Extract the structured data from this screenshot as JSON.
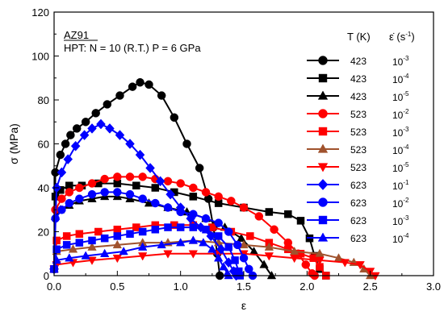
{
  "chart_data": {
    "type": "scatter",
    "annotation": {
      "material": "AZ91",
      "condition": "HPT: N = 10 (R.T.) P = 6 GPa"
    },
    "xlabel": "ε",
    "ylabel": "σ (MPa)",
    "xlim": [
      0,
      3.0
    ],
    "ylim": [
      0,
      120
    ],
    "xticks": [
      "0.0",
      "0.5",
      "1.0",
      "1.5",
      "2.0",
      "2.5",
      "3.0"
    ],
    "yticks": [
      "0",
      "20",
      "40",
      "60",
      "80",
      "100",
      "120"
    ],
    "legend": {
      "placement": "right",
      "header_T": "T (K)",
      "header_rate": "ε̇ (s",
      "header_rate_sup": "-1",
      "header_rate_close": ")"
    },
    "series": [
      {
        "T": "423",
        "rate_base": "10",
        "rate_exp": "-3",
        "color": "#000000",
        "marker": "circle",
        "points": [
          [
            0,
            3
          ],
          [
            0.01,
            47
          ],
          [
            0.05,
            55
          ],
          [
            0.09,
            60
          ],
          [
            0.13,
            64
          ],
          [
            0.18,
            67
          ],
          [
            0.25,
            70
          ],
          [
            0.33,
            74
          ],
          [
            0.42,
            78
          ],
          [
            0.52,
            82
          ],
          [
            0.62,
            86
          ],
          [
            0.68,
            88
          ],
          [
            0.75,
            87
          ],
          [
            0.85,
            82
          ],
          [
            0.95,
            72
          ],
          [
            1.05,
            60
          ],
          [
            1.15,
            49
          ],
          [
            1.22,
            35
          ],
          [
            1.26,
            22
          ],
          [
            1.29,
            10
          ],
          [
            1.31,
            0
          ]
        ]
      },
      {
        "T": "423",
        "rate_base": "10",
        "rate_exp": "-4",
        "color": "#000000",
        "marker": "square",
        "points": [
          [
            0,
            3
          ],
          [
            0.01,
            36
          ],
          [
            0.05,
            39
          ],
          [
            0.12,
            41
          ],
          [
            0.22,
            41
          ],
          [
            0.35,
            42
          ],
          [
            0.5,
            42
          ],
          [
            0.65,
            41
          ],
          [
            0.8,
            40
          ],
          [
            0.95,
            38
          ],
          [
            1.1,
            36
          ],
          [
            1.3,
            33
          ],
          [
            1.5,
            31
          ],
          [
            1.7,
            29
          ],
          [
            1.85,
            28
          ],
          [
            1.95,
            25
          ],
          [
            2.02,
            17
          ],
          [
            2.06,
            9
          ],
          [
            2.1,
            3
          ],
          [
            2.15,
            0
          ]
        ]
      },
      {
        "T": "423",
        "rate_base": "10",
        "rate_exp": "-5",
        "color": "#000000",
        "marker": "triangle-up",
        "points": [
          [
            0,
            3
          ],
          [
            0.01,
            27
          ],
          [
            0.05,
            30
          ],
          [
            0.12,
            32
          ],
          [
            0.2,
            34
          ],
          [
            0.3,
            35
          ],
          [
            0.4,
            36
          ],
          [
            0.5,
            36
          ],
          [
            0.6,
            35
          ],
          [
            0.75,
            33
          ],
          [
            0.9,
            31
          ],
          [
            1.05,
            29
          ],
          [
            1.2,
            26
          ],
          [
            1.35,
            22
          ],
          [
            1.48,
            17
          ],
          [
            1.58,
            11
          ],
          [
            1.66,
            5
          ],
          [
            1.72,
            0
          ]
        ]
      },
      {
        "T": "523",
        "rate_base": "10",
        "rate_exp": "-2",
        "color": "#ff0000",
        "marker": "circle",
        "points": [
          [
            0,
            3
          ],
          [
            0.01,
            30
          ],
          [
            0.06,
            35
          ],
          [
            0.12,
            38
          ],
          [
            0.2,
            40
          ],
          [
            0.3,
            42
          ],
          [
            0.4,
            44
          ],
          [
            0.5,
            45
          ],
          [
            0.6,
            45
          ],
          [
            0.7,
            45
          ],
          [
            0.8,
            44
          ],
          [
            0.9,
            43
          ],
          [
            1.0,
            42
          ],
          [
            1.1,
            40
          ],
          [
            1.2,
            38
          ],
          [
            1.3,
            36
          ],
          [
            1.4,
            34
          ],
          [
            1.5,
            31
          ],
          [
            1.62,
            27
          ],
          [
            1.74,
            21
          ],
          [
            1.85,
            15
          ],
          [
            1.93,
            10
          ],
          [
            1.99,
            5
          ],
          [
            2.04,
            1
          ],
          [
            2.06,
            0
          ]
        ]
      },
      {
        "T": "523",
        "rate_base": "10",
        "rate_exp": "-3",
        "color": "#ff0000",
        "marker": "square",
        "points": [
          [
            0,
            3
          ],
          [
            0.02,
            16
          ],
          [
            0.1,
            18
          ],
          [
            0.2,
            19
          ],
          [
            0.35,
            20
          ],
          [
            0.5,
            21
          ],
          [
            0.65,
            22
          ],
          [
            0.8,
            23
          ],
          [
            0.95,
            23
          ],
          [
            1.1,
            23
          ],
          [
            1.25,
            22
          ],
          [
            1.4,
            20
          ],
          [
            1.55,
            18
          ],
          [
            1.7,
            15
          ],
          [
            1.85,
            12
          ],
          [
            1.95,
            10
          ],
          [
            2.05,
            8
          ],
          [
            2.1,
            4
          ],
          [
            2.15,
            0
          ]
        ]
      },
      {
        "T": "523",
        "rate_base": "10",
        "rate_exp": "-4",
        "color": "#a0522d",
        "marker": "triangle-up",
        "points": [
          [
            0,
            3
          ],
          [
            0.02,
            11
          ],
          [
            0.15,
            12
          ],
          [
            0.3,
            13
          ],
          [
            0.5,
            14
          ],
          [
            0.7,
            15
          ],
          [
            0.9,
            15
          ],
          [
            1.1,
            16
          ],
          [
            1.3,
            15
          ],
          [
            1.5,
            14
          ],
          [
            1.7,
            13
          ],
          [
            1.9,
            11
          ],
          [
            2.1,
            10
          ],
          [
            2.25,
            8
          ],
          [
            2.37,
            6
          ],
          [
            2.45,
            3
          ],
          [
            2.5,
            0
          ]
        ]
      },
      {
        "T": "523",
        "rate_base": "10",
        "rate_exp": "-5",
        "color": "#ff0000",
        "marker": "triangle-down",
        "points": [
          [
            0,
            3
          ],
          [
            0.02,
            5
          ],
          [
            0.15,
            6
          ],
          [
            0.3,
            7
          ],
          [
            0.5,
            8
          ],
          [
            0.7,
            9
          ],
          [
            0.9,
            10
          ],
          [
            1.1,
            10
          ],
          [
            1.3,
            10
          ],
          [
            1.5,
            10
          ],
          [
            1.7,
            9
          ],
          [
            1.9,
            8
          ],
          [
            2.1,
            7
          ],
          [
            2.3,
            6
          ],
          [
            2.42,
            5
          ],
          [
            2.5,
            2
          ],
          [
            2.54,
            0
          ]
        ]
      },
      {
        "T": "623",
        "rate_base": "10",
        "rate_exp": "-1",
        "color": "#0000ff",
        "marker": "diamond",
        "points": [
          [
            0,
            3
          ],
          [
            0.02,
            40
          ],
          [
            0.06,
            47
          ],
          [
            0.11,
            53
          ],
          [
            0.17,
            59
          ],
          [
            0.24,
            64
          ],
          [
            0.3,
            67
          ],
          [
            0.37,
            69
          ],
          [
            0.44,
            67
          ],
          [
            0.52,
            64
          ],
          [
            0.6,
            60
          ],
          [
            0.68,
            55
          ],
          [
            0.76,
            49
          ],
          [
            0.84,
            43
          ],
          [
            0.92,
            37
          ],
          [
            1.0,
            31
          ],
          [
            1.08,
            26
          ],
          [
            1.16,
            22
          ],
          [
            1.24,
            18
          ],
          [
            1.32,
            12
          ],
          [
            1.38,
            6
          ],
          [
            1.42,
            2
          ],
          [
            1.44,
            0
          ]
        ]
      },
      {
        "T": "623",
        "rate_base": "10",
        "rate_exp": "-2",
        "color": "#0000ff",
        "marker": "circle",
        "points": [
          [
            0,
            3
          ],
          [
            0.01,
            26
          ],
          [
            0.06,
            30
          ],
          [
            0.12,
            33
          ],
          [
            0.2,
            35
          ],
          [
            0.3,
            37
          ],
          [
            0.4,
            38
          ],
          [
            0.5,
            38
          ],
          [
            0.6,
            37
          ],
          [
            0.7,
            35
          ],
          [
            0.8,
            33
          ],
          [
            0.9,
            31
          ],
          [
            1.0,
            29
          ],
          [
            1.1,
            28
          ],
          [
            1.2,
            26
          ],
          [
            1.3,
            24
          ],
          [
            1.38,
            20
          ],
          [
            1.45,
            14
          ],
          [
            1.5,
            8
          ],
          [
            1.54,
            3
          ],
          [
            1.57,
            0
          ]
        ]
      },
      {
        "T": "623",
        "rate_base": "10",
        "rate_exp": "-3",
        "color": "#0000ff",
        "marker": "square",
        "points": [
          [
            0,
            3
          ],
          [
            0.02,
            12
          ],
          [
            0.1,
            14
          ],
          [
            0.2,
            15
          ],
          [
            0.3,
            16
          ],
          [
            0.4,
            17
          ],
          [
            0.5,
            18
          ],
          [
            0.6,
            19
          ],
          [
            0.7,
            20
          ],
          [
            0.8,
            21
          ],
          [
            0.9,
            22
          ],
          [
            1.0,
            22
          ],
          [
            1.1,
            22
          ],
          [
            1.2,
            21
          ],
          [
            1.3,
            18
          ],
          [
            1.38,
            13
          ],
          [
            1.43,
            7
          ],
          [
            1.46,
            2
          ],
          [
            1.47,
            0
          ]
        ]
      },
      {
        "T": "623",
        "rate_base": "10",
        "rate_exp": "-4",
        "color": "#0000ff",
        "marker": "triangle-up",
        "points": [
          [
            0,
            3
          ],
          [
            0.02,
            7
          ],
          [
            0.12,
            8
          ],
          [
            0.25,
            9
          ],
          [
            0.4,
            10
          ],
          [
            0.55,
            11
          ],
          [
            0.7,
            13
          ],
          [
            0.85,
            14
          ],
          [
            1.0,
            15
          ],
          [
            1.1,
            16
          ],
          [
            1.18,
            15
          ],
          [
            1.25,
            12
          ],
          [
            1.3,
            8
          ],
          [
            1.34,
            4
          ],
          [
            1.37,
            1
          ],
          [
            1.38,
            0
          ]
        ]
      }
    ]
  }
}
